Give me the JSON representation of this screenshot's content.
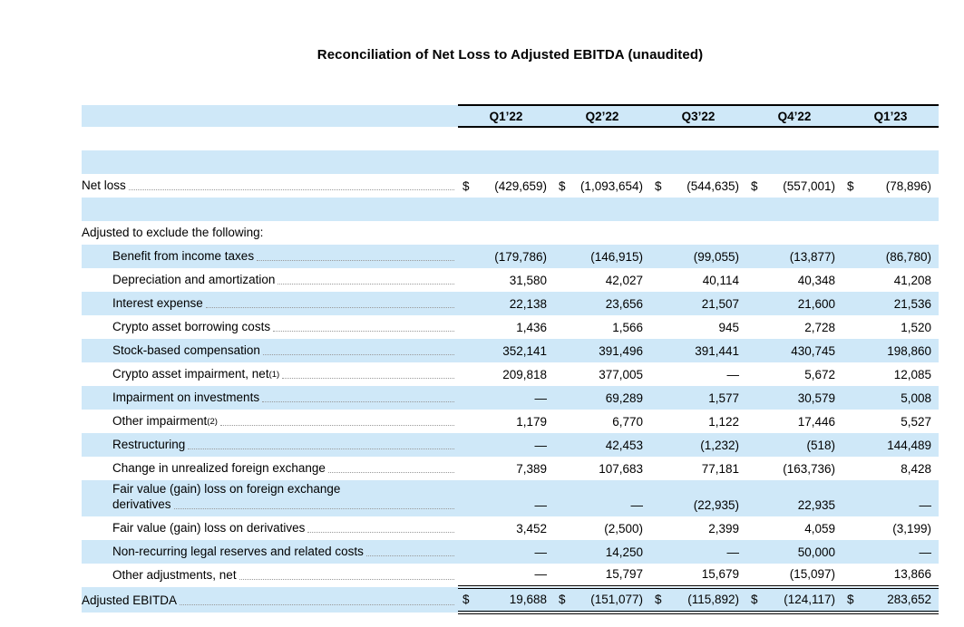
{
  "title": "Reconciliation of Net Loss to Adjusted EBITDA (unaudited)",
  "colors": {
    "row_highlight": "#cfe8f8",
    "rule_black": "#000000",
    "leader_gray": "#999999",
    "text": "#000000"
  },
  "table": {
    "columns": [
      "Q1’22",
      "Q2’22",
      "Q3’22",
      "Q4’22",
      "Q1’23"
    ],
    "rows": [
      {
        "type": "spacer",
        "shade": false
      },
      {
        "type": "spacer",
        "shade": true
      },
      {
        "type": "data",
        "label": "Net loss",
        "indent": 0,
        "leader": true,
        "dollar": true,
        "shade": false,
        "values": [
          "(429,659)",
          "(1,093,654)",
          "(544,635)",
          "(557,001)",
          "(78,896)"
        ]
      },
      {
        "type": "spacer",
        "shade": true
      },
      {
        "type": "data",
        "label": "Adjusted to exclude the following:",
        "indent": 0,
        "leader": false,
        "shade": false,
        "values": [
          "",
          "",
          "",
          "",
          ""
        ]
      },
      {
        "type": "data",
        "label": "Benefit from income taxes",
        "indent": 1,
        "leader": true,
        "shade": true,
        "values": [
          "(179,786)",
          "(146,915)",
          "(99,055)",
          "(13,877)",
          "(86,780)"
        ]
      },
      {
        "type": "data",
        "label": "Depreciation and amortization",
        "indent": 1,
        "leader": true,
        "shade": false,
        "values": [
          "31,580",
          "42,027",
          "40,114",
          "40,348",
          "41,208"
        ]
      },
      {
        "type": "data",
        "label": "Interest expense",
        "indent": 1,
        "leader": true,
        "shade": true,
        "values": [
          "22,138",
          "23,656",
          "21,507",
          "21,600",
          "21,536"
        ]
      },
      {
        "type": "data",
        "label": "Crypto asset borrowing costs",
        "indent": 1,
        "leader": true,
        "shade": false,
        "values": [
          "1,436",
          "1,566",
          "945",
          "2,728",
          "1,520"
        ]
      },
      {
        "type": "data",
        "label": "Stock-based compensation",
        "indent": 1,
        "leader": true,
        "shade": true,
        "values": [
          "352,141",
          "391,496",
          "391,441",
          "430,745",
          "198,860"
        ]
      },
      {
        "type": "data",
        "label": "Crypto asset impairment, net",
        "sup": "(1)",
        "indent": 1,
        "leader": true,
        "shade": false,
        "values": [
          "209,818",
          "377,005",
          "—",
          "5,672",
          "12,085"
        ]
      },
      {
        "type": "data",
        "label": "Impairment on investments",
        "indent": 1,
        "leader": true,
        "shade": true,
        "values": [
          "—",
          "69,289",
          "1,577",
          "30,579",
          "5,008"
        ]
      },
      {
        "type": "data",
        "label": "Other impairment",
        "sup": "(2)",
        "indent": 1,
        "leader": true,
        "shade": false,
        "values": [
          "1,179",
          "6,770",
          "1,122",
          "17,446",
          "5,527"
        ]
      },
      {
        "type": "data",
        "label": "Restructuring",
        "indent": 1,
        "leader": true,
        "shade": true,
        "values": [
          "—",
          "42,453",
          "(1,232)",
          "(518)",
          "144,489"
        ]
      },
      {
        "type": "data",
        "label": "Change in unrealized foreign exchange",
        "indent": 1,
        "leader": true,
        "shade": false,
        "values": [
          "7,389",
          "107,683",
          "77,181",
          "(163,736)",
          "8,428"
        ]
      },
      {
        "type": "data",
        "label": "Fair value (gain) loss on foreign exchange",
        "label2": "derivatives",
        "indent": 1,
        "leader": true,
        "shade": true,
        "tall": true,
        "values": [
          "—",
          "—",
          "(22,935)",
          "22,935",
          "—"
        ]
      },
      {
        "type": "data",
        "label": "Fair value (gain) loss on derivatives",
        "indent": 1,
        "leader": true,
        "shade": false,
        "values": [
          "3,452",
          "(2,500)",
          "2,399",
          "4,059",
          "(3,199)"
        ]
      },
      {
        "type": "data",
        "label": "Non-recurring legal reserves and related costs",
        "indent": 1,
        "leader": true,
        "shade": true,
        "values": [
          "—",
          "14,250",
          "—",
          "50,000",
          "—"
        ]
      },
      {
        "type": "data",
        "label": "Other adjustments, net",
        "indent": 1,
        "leader": true,
        "shade": false,
        "values": [
          "—",
          "15,797",
          "15,679",
          "(15,097)",
          "13,866"
        ]
      },
      {
        "type": "data",
        "label": "Adjusted EBITDA",
        "indent": 0,
        "leader": true,
        "dollar": true,
        "shade": true,
        "total": true,
        "values": [
          "19,688",
          "(151,077)",
          "(115,892)",
          "(124,117)",
          "283,652"
        ]
      }
    ]
  }
}
